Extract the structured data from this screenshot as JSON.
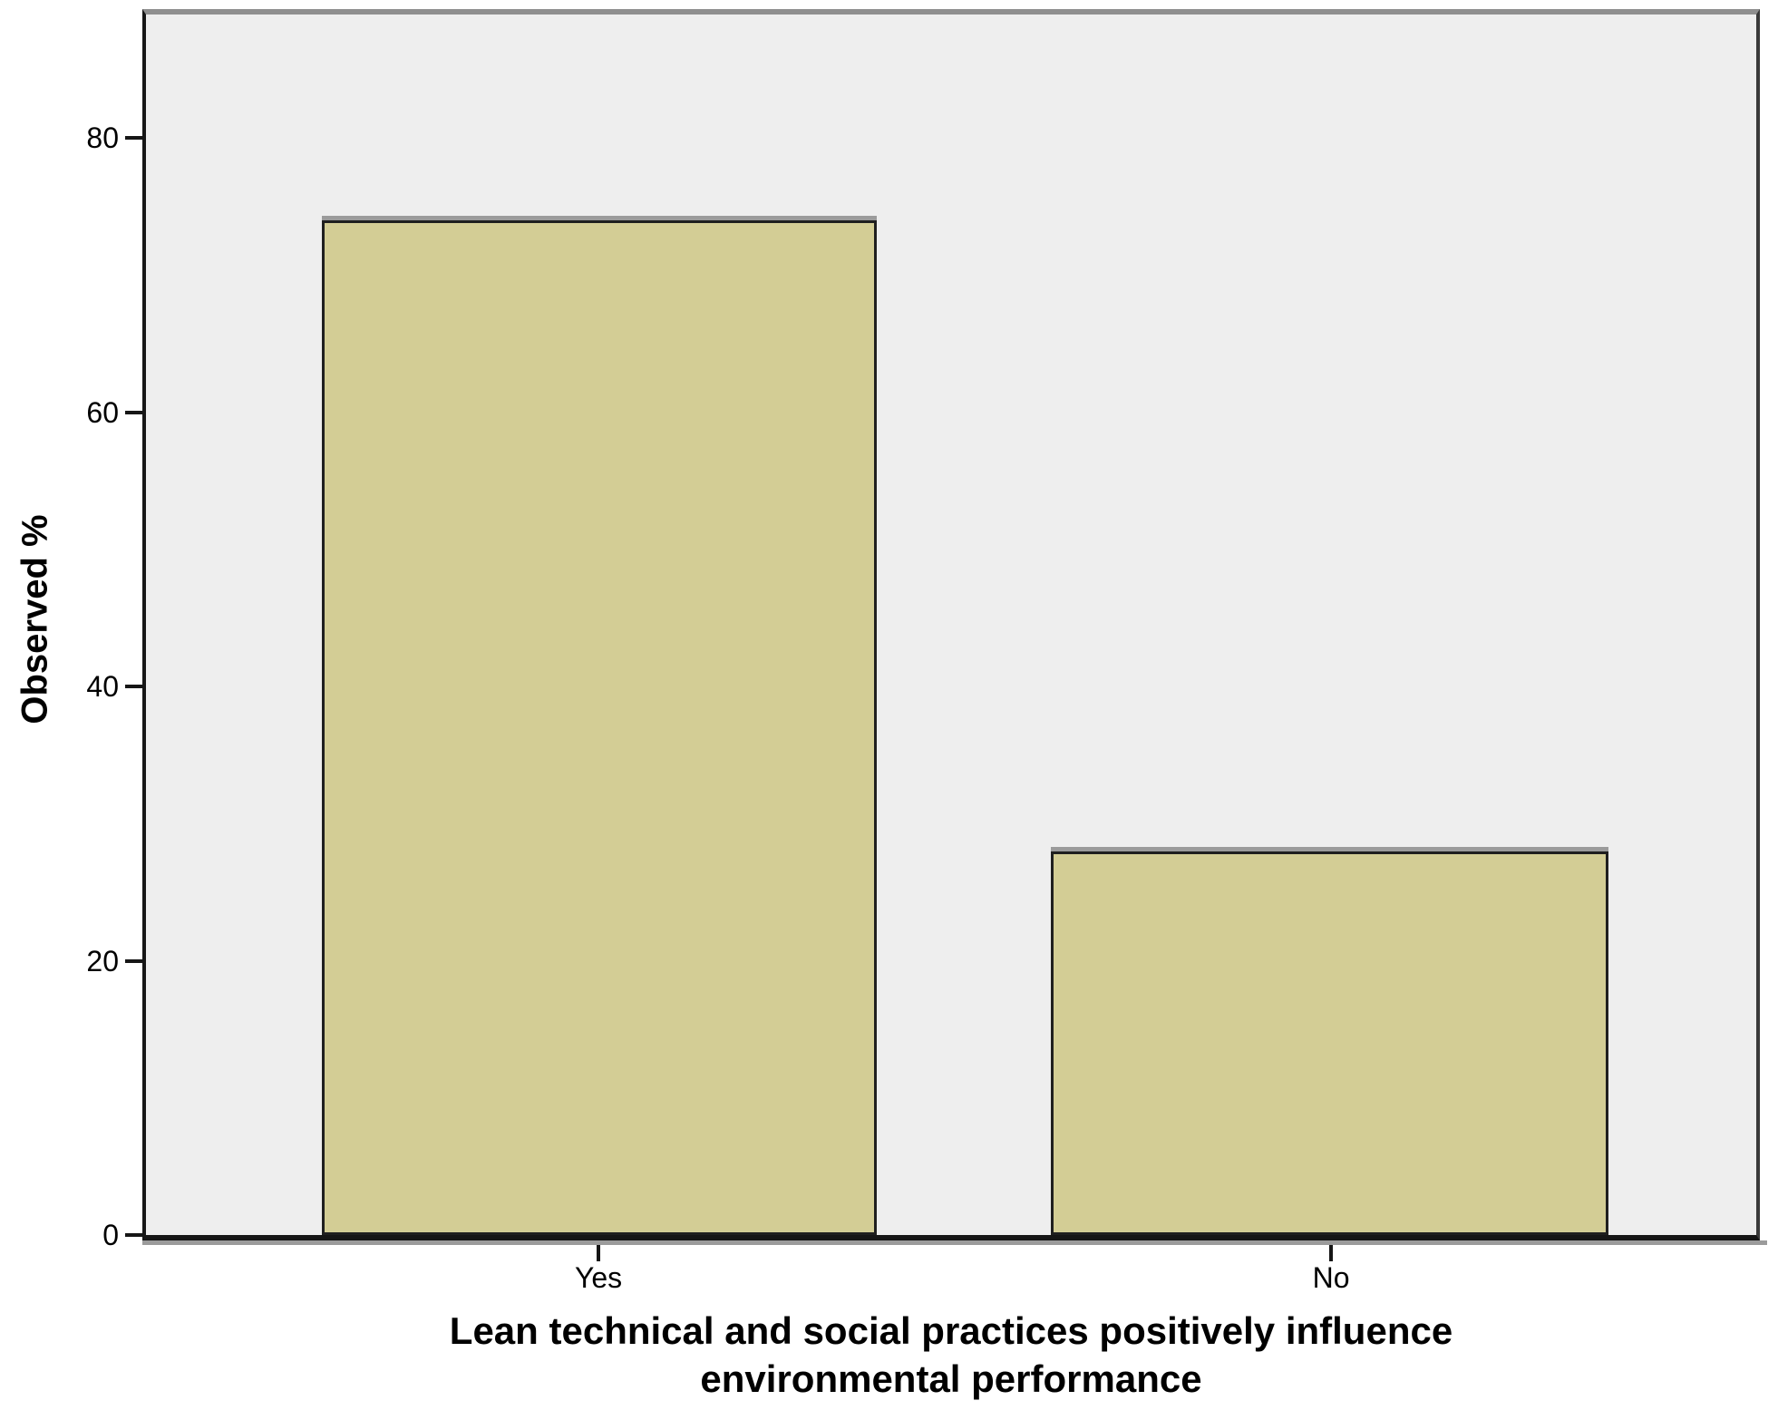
{
  "figure": {
    "y_axis_title": "Observed %",
    "x_axis_title_line1": "Lean technical and social practices positively influence",
    "x_axis_title_line2": "environmental performance"
  },
  "chart_data": {
    "type": "bar",
    "title": "",
    "categories": [
      "Yes",
      "No"
    ],
    "values": [
      74,
      28
    ],
    "xlabel": "Lean technical and social practices positively influence environmental performance",
    "ylabel": "Observed %",
    "yticks": [
      80,
      60,
      40,
      20,
      0
    ],
    "ylim": [
      0,
      89
    ],
    "grid": false,
    "legend": false,
    "colors": {
      "bar_fill": "#d3cd95",
      "bar_border": "#1f1f1f",
      "plot_bg": "#eeeeee",
      "axis": "#161616",
      "frame_top": "#8f8f8f",
      "frame_right": "#3a3a3a",
      "shadow": "#9b9b9b"
    }
  }
}
